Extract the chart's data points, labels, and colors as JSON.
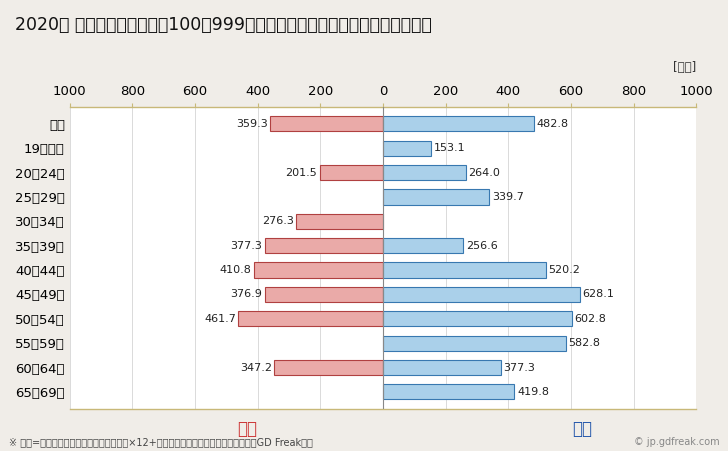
{
  "title": "2020年 民間企業（従業者数100〜999人）フルタイム労働者の男女別平均年収",
  "ylabel_unit": "[万円]",
  "footnote": "※ 年収=「きまって支給する現金給与額」×12+「年間賞与その他特別給与額」としてGD Freak推計",
  "watermark": "© jp.gdfreak.com",
  "categories": [
    "全体",
    "19歳以下",
    "20〜24歳",
    "25〜29歳",
    "30〜34歳",
    "35〜39歳",
    "40〜44歳",
    "45〜49歳",
    "50〜54歳",
    "55〜59歳",
    "60〜64歳",
    "65〜69歳"
  ],
  "female_values": [
    359.3,
    0.0,
    201.5,
    0.0,
    276.3,
    377.3,
    410.8,
    376.9,
    461.7,
    0.0,
    347.2,
    0.0
  ],
  "male_values": [
    482.8,
    153.1,
    264.0,
    339.7,
    0.0,
    256.6,
    520.2,
    628.1,
    602.8,
    582.8,
    377.3,
    419.8
  ],
  "female_color": "#eaaaa8",
  "male_color": "#aad0ea",
  "female_border_color": "#b04040",
  "male_border_color": "#3878b0",
  "female_label": "女性",
  "male_label": "男性",
  "female_label_color": "#cc3333",
  "male_label_color": "#2255aa",
  "xlim": [
    -1000,
    1000
  ],
  "xticks": [
    -1000,
    -800,
    -600,
    -400,
    -200,
    0,
    200,
    400,
    600,
    800,
    1000
  ],
  "xticklabels": [
    "1000",
    "800",
    "600",
    "400",
    "200",
    "0",
    "200",
    "400",
    "600",
    "800",
    "1000"
  ],
  "background_color": "#f0ede8",
  "plot_bg_color": "#ffffff",
  "title_fontsize": 12.5,
  "axis_fontsize": 9.5,
  "bar_value_fontsize": 8,
  "label_fontsize": 12,
  "footnote_fontsize": 7,
  "bar_height": 0.62,
  "grid_color": "#cccccc",
  "border_color": "#c8b878",
  "center_line_color": "#888888"
}
